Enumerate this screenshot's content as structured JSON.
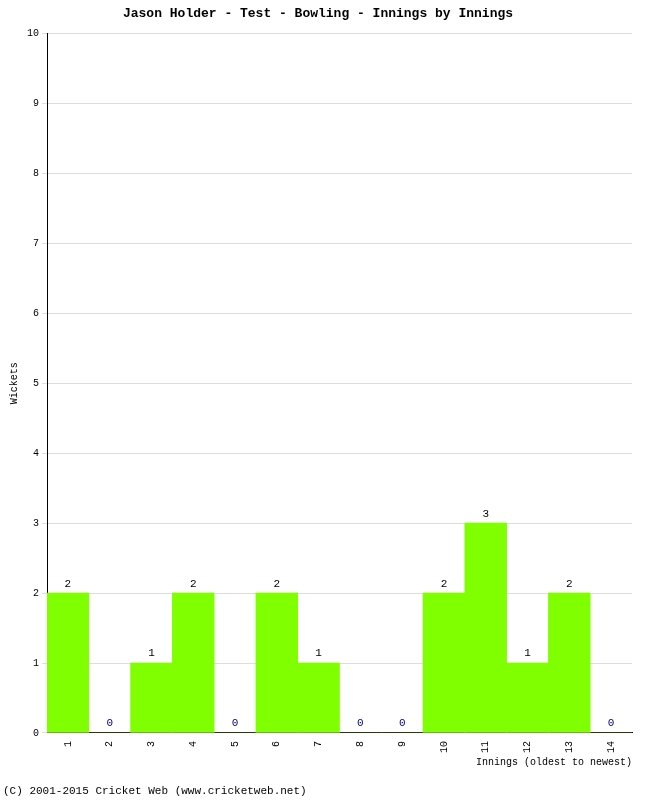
{
  "chart_data": {
    "type": "bar",
    "title": "Jason Holder - Test - Bowling - Innings by Innings",
    "x_label": "Innings (oldest to newest)",
    "y_label": "Wickets",
    "annotations": [
      "(C) 2001-2015 Cricket Web (www.cricketweb.net)"
    ],
    "categories": [
      "1",
      "2",
      "3",
      "4",
      "5",
      "6",
      "7",
      "8",
      "9",
      "10",
      "11",
      "12",
      "13",
      "14"
    ],
    "values": [
      2,
      0,
      1,
      2,
      0,
      2,
      1,
      0,
      0,
      2,
      3,
      1,
      2,
      0
    ],
    "color": "#80ff00",
    "ylim": [
      0,
      10
    ],
    "yticks": [
      0,
      1,
      2,
      3,
      4,
      5,
      6,
      7,
      8,
      9,
      10
    ],
    "grid": true,
    "data_labels": true
  }
}
